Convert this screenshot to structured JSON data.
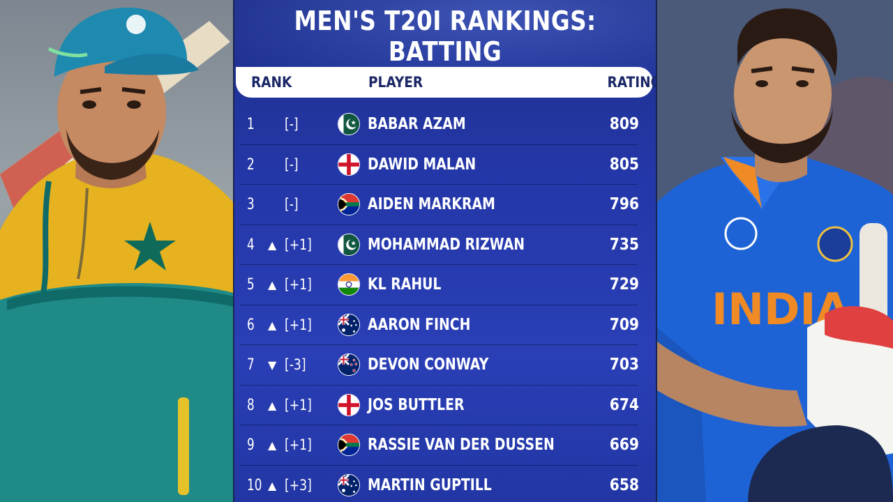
{
  "title": "MEN'S T20I RANKINGS: BATTING",
  "headers": {
    "rank": "RANK",
    "player": "PLAYER",
    "rating": "RATING"
  },
  "rows": [
    {
      "rank": "1",
      "arrow": "",
      "move": "[-]",
      "flag": "pakistan",
      "player": "BABAR AZAM",
      "rating": "809"
    },
    {
      "rank": "2",
      "arrow": "",
      "move": "[-]",
      "flag": "england",
      "player": "DAWID MALAN",
      "rating": "805"
    },
    {
      "rank": "3",
      "arrow": "",
      "move": "[-]",
      "flag": "south-africa",
      "player": "AIDEN MARKRAM",
      "rating": "796"
    },
    {
      "rank": "4",
      "arrow": "▲",
      "move": "[+1]",
      "flag": "pakistan",
      "player": "MOHAMMAD RIZWAN",
      "rating": "735"
    },
    {
      "rank": "5",
      "arrow": "▲",
      "move": "[+1]",
      "flag": "india",
      "player": "KL RAHUL",
      "rating": "729"
    },
    {
      "rank": "6",
      "arrow": "▲",
      "move": "[+1]",
      "flag": "australia",
      "player": "AARON FINCH",
      "rating": "709"
    },
    {
      "rank": "7",
      "arrow": "▼",
      "move": "[-3]",
      "flag": "new-zealand",
      "player": "DEVON CONWAY",
      "rating": "703"
    },
    {
      "rank": "8",
      "arrow": "▲",
      "move": "[+1]",
      "flag": "england",
      "player": "JOS BUTTLER",
      "rating": "674"
    },
    {
      "rank": "9",
      "arrow": "▲",
      "move": "[+1]",
      "flag": "south-africa",
      "player": "RASSIE VAN DER DUSSEN",
      "rating": "669"
    },
    {
      "rank": "10",
      "arrow": "▲",
      "move": "[+3]",
      "flag": "australia",
      "player": "MARTIN GUPTILL",
      "rating": "658"
    }
  ],
  "photos": {
    "left": {
      "jersey_text": ""
    },
    "right": {
      "jersey_text": "INDIA"
    }
  },
  "colors": {
    "board_blue": "#2a3fb6",
    "header_text": "#1b2767",
    "pakistan_green": "#115740",
    "india_saffron": "#ff9933",
    "india_green": "#138808",
    "england_red": "#cf142b",
    "jersey_blue": "#1e63d6",
    "jersey_orange": "#f08a24"
  }
}
